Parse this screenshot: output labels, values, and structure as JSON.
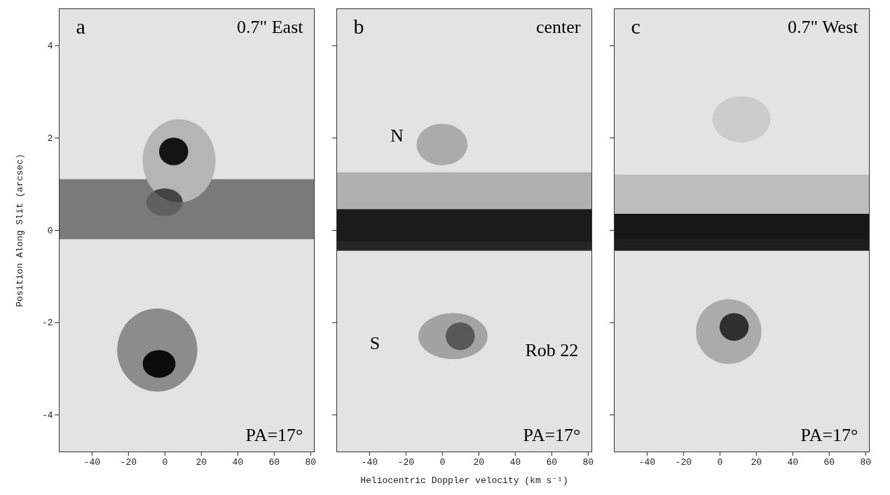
{
  "chart_data": [
    {
      "type": "scatter",
      "label": "a",
      "title": "0.7\" East",
      "note": "PA=17°",
      "xlim": [
        -58,
        82
      ],
      "xticks": [
        -40,
        -20,
        0,
        20,
        40,
        60,
        80
      ],
      "ylim": [
        -4.8,
        4.8
      ],
      "yticks": [
        -4,
        -2,
        0,
        2,
        4
      ],
      "y_label": "Position Along Slit (arcsec)",
      "continuum": [
        {
          "y": 0.45,
          "width": 1.3,
          "color": "#7a7a7a"
        }
      ],
      "knots": [
        {
          "x": 8,
          "y": 1.5,
          "dx": 20,
          "dy": 0.9,
          "color": "#b5b5b5"
        },
        {
          "x": 5,
          "y": 1.7,
          "dx": 8,
          "dy": 0.3,
          "color": "#1c1c1c"
        },
        {
          "x": 0,
          "y": 0.6,
          "dx": 10,
          "dy": 0.3,
          "color": "#606060"
        },
        {
          "x": -4,
          "y": -2.6,
          "dx": 22,
          "dy": 0.9,
          "color": "#8c8c8c"
        },
        {
          "x": -3,
          "y": -2.9,
          "dx": 9,
          "dy": 0.3,
          "color": "#151515"
        }
      ]
    },
    {
      "type": "scatter",
      "label": "b",
      "title": "center",
      "note": "PA=17°",
      "xlim": [
        -58,
        82
      ],
      "xticks": [
        -40,
        -20,
        0,
        20,
        40,
        60,
        80
      ],
      "ylim": [
        -4.8,
        4.8
      ],
      "yticks": [
        -4,
        -2,
        0,
        2,
        4
      ],
      "tick_labels": "x",
      "x_label": "Heliocentric Doppler velocity (km s⁻¹)",
      "continuum": [
        {
          "y": 0.5,
          "width": 1.5,
          "color": "#b0b0b0"
        },
        {
          "y": 0.0,
          "width": 0.9,
          "color": "#262626"
        }
      ],
      "knots": [
        {
          "x": 0,
          "y": 1.85,
          "dx": 14,
          "dy": 0.45,
          "color": "#ababab"
        },
        {
          "x": 6,
          "y": -2.3,
          "dx": 19,
          "dy": 0.5,
          "color": "#a3a3a3"
        },
        {
          "x": 10,
          "y": -2.3,
          "dx": 8,
          "dy": 0.3,
          "color": "#8a8a8a"
        }
      ],
      "annotations": [
        {
          "text": "N",
          "x": -25,
          "y": 2.05
        },
        {
          "text": "S",
          "x": -37,
          "y": -2.45
        }
      ],
      "boxed_annotations": [
        {
          "text": "Rob 22",
          "x": 60,
          "y": -2.6
        }
      ]
    },
    {
      "type": "scatter",
      "label": "c",
      "title": "0.7\" West",
      "note": "PA=17°",
      "xlim": [
        -58,
        82
      ],
      "xticks": [
        -40,
        -20,
        0,
        20,
        40,
        60,
        80
      ],
      "ylim": [
        -4.8,
        4.8
      ],
      "yticks": [
        -4,
        -2,
        0,
        2,
        4
      ],
      "tick_labels": "x",
      "continuum": [
        {
          "y": 0.5,
          "width": 1.4,
          "color": "#bdbdbd"
        },
        {
          "y": -0.05,
          "width": 0.8,
          "color": "#1e1e1e"
        }
      ],
      "knots": [
        {
          "x": 12,
          "y": 2.4,
          "dx": 16,
          "dy": 0.5,
          "color": "#cccccc"
        },
        {
          "x": 5,
          "y": -2.2,
          "dx": 18,
          "dy": 0.7,
          "color": "#ababab"
        },
        {
          "x": 8,
          "y": -2.1,
          "dx": 8,
          "dy": 0.3,
          "color": "#454545"
        }
      ]
    }
  ]
}
